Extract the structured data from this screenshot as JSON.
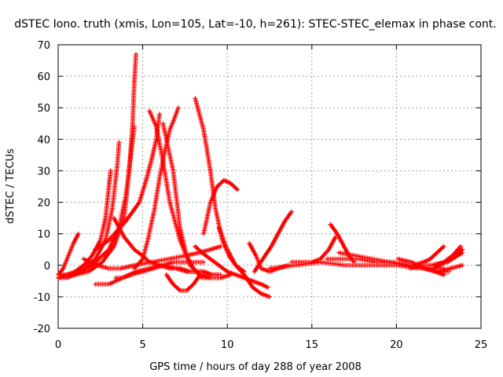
{
  "chart_data": {
    "type": "scatter",
    "title": "dSTEC Iono. truth (xmis, Lon=105, Lat=-10, h=261): STEC-STEC_elemax in phase cont.",
    "xlabel": "GPS time / hours of day 288 of year 2008",
    "ylabel": "dSTEC  / TECUs",
    "xlim": [
      0,
      25
    ],
    "ylim": [
      -20,
      70
    ],
    "xticks": [
      "0",
      "5",
      "10",
      "15",
      "20",
      "25"
    ],
    "yticks": [
      "-20",
      "-10",
      "0",
      "10",
      "20",
      "30",
      "40",
      "50",
      "60",
      "70"
    ],
    "grid": true,
    "marker": "+",
    "color": "#ff0000",
    "series": [
      {
        "x": [
          0.0,
          0.3,
          0.6,
          0.9,
          1.2
        ],
        "y": [
          -3,
          -1,
          3,
          7,
          10
        ]
      },
      {
        "x": [
          0.0,
          0.5,
          1.0,
          1.5,
          2.0,
          2.5,
          2.8,
          3.0,
          3.1
        ],
        "y": [
          -4,
          -3,
          -2,
          0,
          3,
          8,
          15,
          25,
          30
        ]
      },
      {
        "x": [
          0.2,
          0.8,
          1.5,
          2.2,
          2.8,
          3.2,
          3.5,
          3.6
        ],
        "y": [
          -3,
          -3,
          -1,
          2,
          8,
          18,
          32,
          39
        ]
      },
      {
        "x": [
          0.0,
          0.5,
          1.0,
          1.8,
          2.6,
          3.3,
          3.9,
          4.2,
          4.4,
          4.5,
          4.6
        ],
        "y": [
          -4,
          -4,
          -3,
          -2,
          1,
          6,
          15,
          30,
          45,
          58,
          67
        ]
      },
      {
        "x": [
          1.0,
          2.0,
          3.0,
          3.6,
          4.0,
          4.3,
          4.5
        ],
        "y": [
          -3,
          0,
          5,
          12,
          22,
          35,
          44
        ]
      },
      {
        "x": [
          3.4,
          3.8,
          4.3,
          5.0,
          5.6,
          6.2,
          6.8,
          7.3,
          7.8,
          8.2,
          8.6
        ],
        "y": [
          -4,
          -4,
          -3,
          -2,
          -1,
          0,
          1,
          1,
          1,
          1,
          1
        ]
      },
      {
        "x": [
          2.2,
          3.0,
          4.0,
          4.8,
          5.2,
          5.5,
          5.8,
          6.0
        ],
        "y": [
          5,
          8,
          14,
          20,
          27,
          33,
          40,
          48
        ]
      },
      {
        "x": [
          1.5,
          2.3,
          3.0,
          3.7,
          4.5,
          5.5,
          6.5,
          7.5,
          8.3,
          9.0,
          9.6
        ],
        "y": [
          2,
          0,
          -1,
          -1,
          0,
          1,
          2,
          3,
          4,
          5,
          6
        ]
      },
      {
        "x": [
          4.5,
          5.0,
          5.3,
          5.7,
          6.0,
          6.3,
          6.6,
          6.9,
          7.1
        ],
        "y": [
          -1,
          2,
          8,
          18,
          28,
          36,
          43,
          47,
          50
        ]
      },
      {
        "x": [
          5.4,
          5.8,
          6.2,
          6.6,
          7.2,
          7.8,
          8.4,
          9.0
        ],
        "y": [
          49,
          44,
          33,
          20,
          8,
          0,
          -3,
          -4
        ]
      },
      {
        "x": [
          3.3,
          3.9,
          4.5,
          5.0,
          5.4,
          6.0,
          6.6,
          7.2,
          7.8,
          8.5,
          9.0,
          9.5
        ],
        "y": [
          15,
          9,
          5,
          3,
          1,
          0,
          -1,
          -1,
          -2,
          -2,
          -3,
          -3
        ]
      },
      {
        "x": [
          6.2,
          6.8,
          7.2,
          7.6,
          8.0,
          8.5,
          9.0,
          9.6,
          10.2
        ],
        "y": [
          45,
          30,
          12,
          3,
          -1,
          -4,
          -4,
          -4,
          -3
        ]
      },
      {
        "x": [
          6.4,
          6.8,
          7.2,
          7.6,
          8.0,
          8.4
        ],
        "y": [
          -3,
          -6,
          -8,
          -8,
          -6,
          -3
        ]
      },
      {
        "x": [
          2.2,
          3.0,
          3.8,
          4.6,
          5.4,
          6.2,
          7.0,
          7.6,
          8.1,
          8.6,
          9.1,
          9.6
        ],
        "y": [
          -6,
          -6,
          -4,
          -2,
          -1,
          0,
          -1,
          -2,
          -2,
          -2,
          -3,
          -3
        ]
      },
      {
        "x": [
          8.1,
          8.6,
          9.0,
          9.3,
          9.7,
          10.1,
          10.5,
          11.0,
          11.5,
          12.0,
          12.5
        ],
        "y": [
          53,
          43,
          30,
          18,
          8,
          3,
          0,
          -3,
          -7,
          -9,
          -10
        ]
      },
      {
        "x": [
          8.6,
          9.0,
          9.4,
          9.8,
          10.2,
          10.6
        ],
        "y": [
          10,
          20,
          25,
          27,
          26,
          24
        ]
      },
      {
        "x": [
          8.1,
          8.5,
          9.0,
          9.5,
          10.0,
          10.5,
          11.0,
          11.5,
          12.0,
          12.4
        ],
        "y": [
          6,
          4,
          2,
          0,
          -2,
          -3,
          -4,
          -5,
          -6,
          -7
        ]
      },
      {
        "x": [
          9.5,
          10.0,
          10.5,
          11.0
        ],
        "y": [
          12,
          5,
          0,
          -2
        ]
      },
      {
        "x": [
          11.3,
          11.7,
          12.0,
          12.5,
          13.0,
          13.6
        ],
        "y": [
          7,
          3,
          -1,
          -2,
          -1,
          0
        ]
      },
      {
        "x": [
          11.6,
          12.1,
          12.6,
          13.0,
          13.4,
          13.8
        ],
        "y": [
          -2,
          2,
          6,
          10,
          14,
          17
        ]
      },
      {
        "x": [
          12.5,
          14.0,
          15.5,
          17.0,
          18.5,
          20.0,
          21.5,
          22.8
        ],
        "y": [
          -1,
          0,
          1,
          0,
          0,
          0,
          -1,
          -1
        ]
      },
      {
        "x": [
          13.8,
          14.4,
          15.0,
          15.5,
          16.0,
          16.4
        ],
        "y": [
          1,
          1,
          1,
          2,
          5,
          9
        ]
      },
      {
        "x": [
          16.1,
          16.5,
          16.9,
          17.2,
          17.5
        ],
        "y": [
          13,
          10,
          6,
          3,
          1
        ]
      },
      {
        "x": [
          15.9,
          16.8,
          17.8,
          18.8,
          19.8,
          20.8,
          21.8,
          22.3,
          22.7,
          23.1
        ],
        "y": [
          2,
          2,
          2,
          1,
          1,
          0,
          -1,
          -2,
          -2,
          -2
        ]
      },
      {
        "x": [
          16.6,
          17.6,
          18.6,
          19.6,
          20.6,
          21.6,
          22.3,
          22.8
        ],
        "y": [
          4,
          3,
          2,
          1,
          0,
          -1,
          -2,
          -3
        ]
      },
      {
        "x": [
          20.1,
          20.9,
          21.7,
          22.4,
          22.8
        ],
        "y": [
          2,
          1,
          -1,
          -2,
          -3
        ]
      },
      {
        "x": [
          20.8,
          21.5,
          22.2,
          22.8,
          23.3,
          23.8
        ],
        "y": [
          -1,
          0,
          0,
          1,
          3,
          6
        ]
      },
      {
        "x": [
          22.2,
          22.9,
          23.4,
          23.9
        ],
        "y": [
          -1,
          1,
          3,
          5
        ]
      },
      {
        "x": [
          21.0,
          21.6,
          22.0,
          22.4,
          22.8
        ],
        "y": [
          0,
          1,
          2,
          4,
          6
        ]
      },
      {
        "x": [
          22.5,
          23.2,
          23.9
        ],
        "y": [
          -2,
          -1,
          0
        ]
      },
      {
        "x": [
          22.0,
          23.0,
          23.9
        ],
        "y": [
          0,
          1,
          4
        ]
      }
    ]
  }
}
